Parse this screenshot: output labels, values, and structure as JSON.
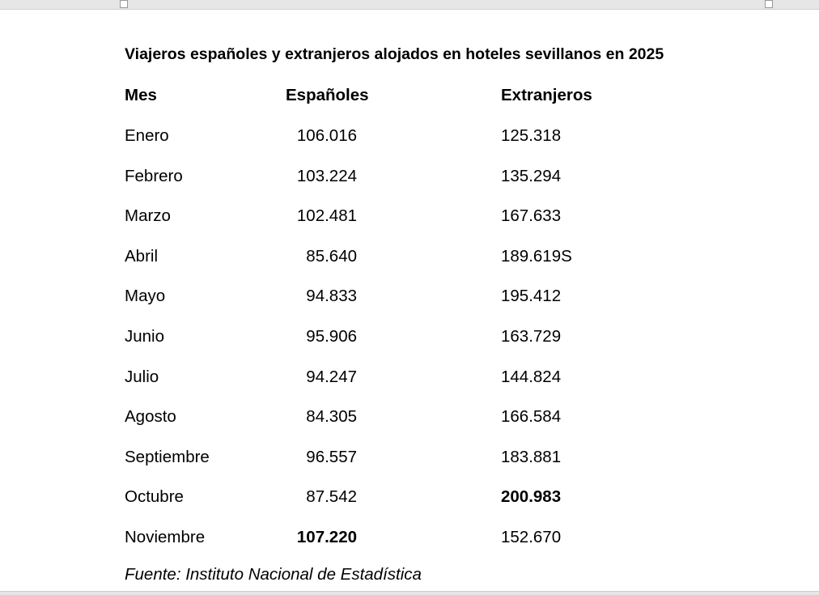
{
  "title": "Viajeros españoles y extranjeros alojados en hoteles sevillanos en 2025",
  "table": {
    "header": [
      "Mes",
      "Españoles",
      "Extranjeros"
    ],
    "rows": [
      [
        "Enero",
        "106.016",
        "125.318"
      ],
      [
        "Febrero",
        "103.224",
        "135.294"
      ],
      [
        "Marzo",
        "102.481",
        "167.633"
      ],
      [
        "Abril",
        "85.640",
        "189.619S"
      ],
      [
        "Mayo",
        "94.833",
        "195.412"
      ],
      [
        "Junio",
        "95.906",
        "163.729"
      ],
      [
        "Julio",
        "94.247",
        "144.824"
      ],
      [
        "Agosto",
        "84.305",
        "166.584"
      ],
      [
        "Septiembre",
        "96.557",
        "183.881"
      ],
      [
        "Octubre",
        "87.542",
        "200.983"
      ],
      [
        "Noviembre",
        "107.220",
        "152.670"
      ]
    ]
  },
  "source": "Fuente: Instituto Nacional de Estadística"
}
